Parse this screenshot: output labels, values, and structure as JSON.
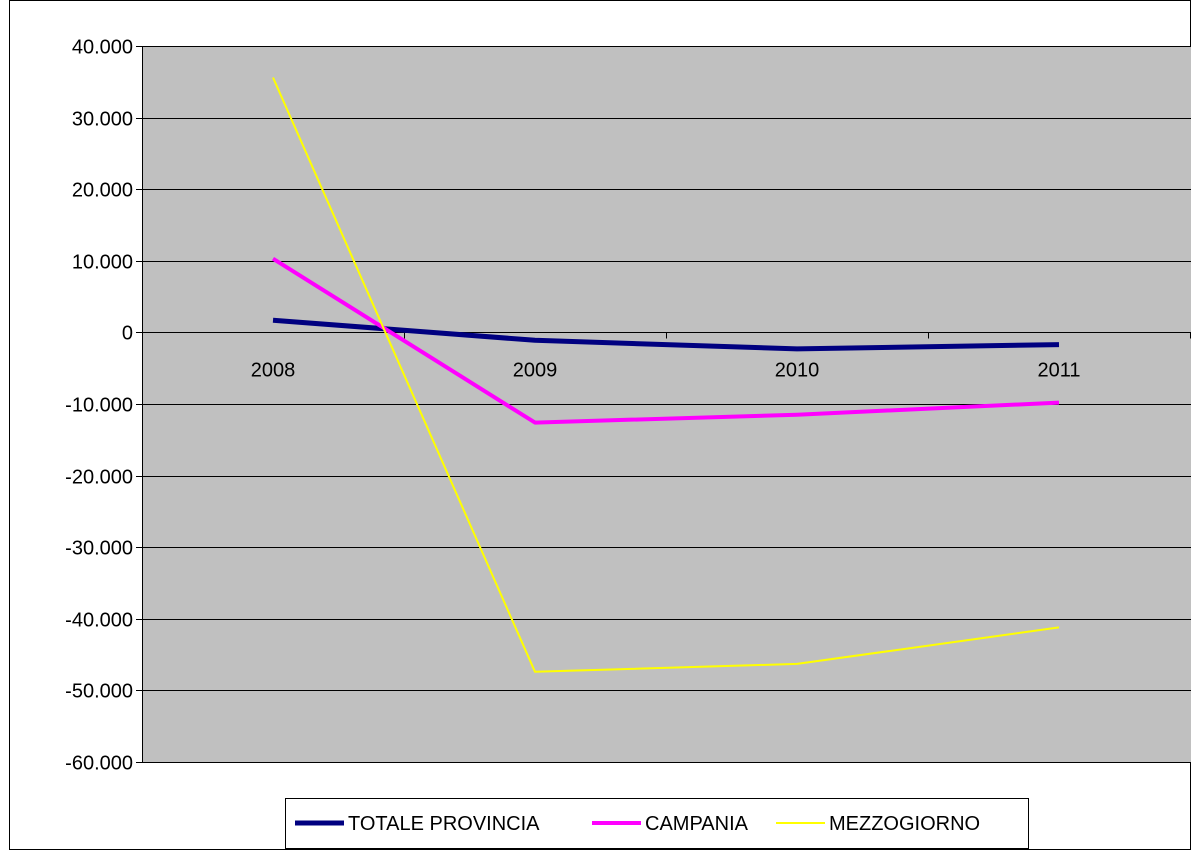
{
  "chart_data": {
    "type": "line",
    "categories": [
      "2008",
      "2009",
      "2010",
      "2011"
    ],
    "ylim": [
      -60000,
      40000
    ],
    "yticks": [
      40000,
      30000,
      20000,
      10000,
      0,
      -10000,
      -20000,
      -30000,
      -40000,
      -50000,
      -60000
    ],
    "ytick_labels": [
      "40.000",
      "30.000",
      "20.000",
      "10.000",
      "0",
      "-10.000",
      "-20.000",
      "-30.000",
      "-40.000",
      "-50.000",
      "-60.000"
    ],
    "grid": true,
    "legend_position": "bottom",
    "series": [
      {
        "name": "TOTALE PROVINCIA",
        "values": [
          1700,
          -1100,
          -2300,
          -1700
        ],
        "color": "#000080"
      },
      {
        "name": "CAMPANIA",
        "values": [
          10300,
          -12600,
          -11500,
          -9800
        ],
        "color": "#ff00ff"
      },
      {
        "name": "MEZZOGIORNO",
        "values": [
          35600,
          -47400,
          -46300,
          -41200
        ],
        "color": "#ffff00"
      }
    ]
  }
}
